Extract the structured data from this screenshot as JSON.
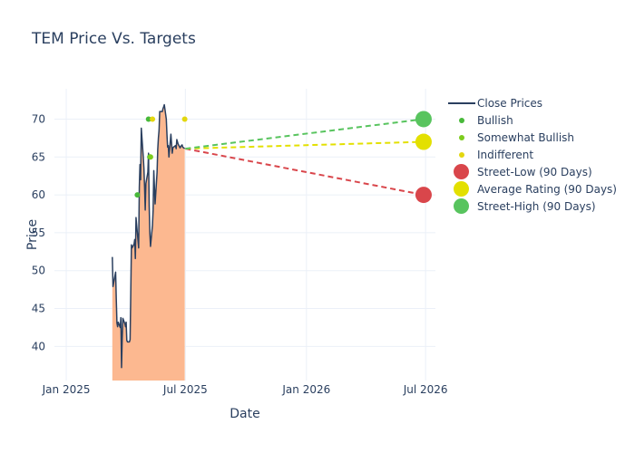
{
  "chart_data": {
    "type": "line",
    "title": "TEM Price Vs. Targets",
    "xlabel": "Date",
    "ylabel": "Price",
    "x_ticks": [
      "2025-01-01",
      "2025-07-01",
      "2026-01-01",
      "2026-07-01"
    ],
    "x_tick_labels": [
      "Jan 2025",
      "Jul 2025",
      "Jan 2026",
      "Jul 2026"
    ],
    "xlim": [
      "2024-12-14",
      "2026-07-16"
    ],
    "y_ticks": [
      40,
      45,
      50,
      55,
      60,
      65,
      70
    ],
    "ylim": [
      35.5,
      74
    ],
    "grid": true,
    "legend_position": "right",
    "close_prices": {
      "name": "Close Prices",
      "color": "#2a3f5f",
      "fill_color": "#fcb890",
      "x": [
        "2025-03-12",
        "2025-03-13",
        "2025-03-14",
        "2025-03-17",
        "2025-03-18",
        "2025-03-19",
        "2025-03-20",
        "2025-03-21",
        "2025-03-24",
        "2025-03-25",
        "2025-03-26",
        "2025-03-27",
        "2025-03-28",
        "2025-03-31",
        "2025-04-01",
        "2025-04-02",
        "2025-04-03",
        "2025-04-04",
        "2025-04-07",
        "2025-04-08",
        "2025-04-09",
        "2025-04-10",
        "2025-04-11",
        "2025-04-14",
        "2025-04-15",
        "2025-04-16",
        "2025-04-17",
        "2025-04-21",
        "2025-04-22",
        "2025-04-23",
        "2025-04-24",
        "2025-04-25",
        "2025-04-28",
        "2025-04-29",
        "2025-04-30",
        "2025-05-01",
        "2025-05-02",
        "2025-05-05",
        "2025-05-06",
        "2025-05-07",
        "2025-05-08",
        "2025-05-09",
        "2025-05-12",
        "2025-05-13",
        "2025-05-14",
        "2025-05-15",
        "2025-05-16",
        "2025-05-19",
        "2025-05-20",
        "2025-05-21",
        "2025-05-22",
        "2025-05-23",
        "2025-05-27",
        "2025-05-28",
        "2025-05-29",
        "2025-05-30",
        "2025-06-02",
        "2025-06-03",
        "2025-06-04",
        "2025-06-05",
        "2025-06-06",
        "2025-06-09",
        "2025-06-10",
        "2025-06-11",
        "2025-06-12",
        "2025-06-13",
        "2025-06-16",
        "2025-06-17",
        "2025-06-18",
        "2025-06-20",
        "2025-06-23",
        "2025-06-24",
        "2025-06-25",
        "2025-06-26",
        "2025-06-27",
        "2025-06-30"
      ],
      "y": [
        51.8,
        47.9,
        48.4,
        49.8,
        46.2,
        43.1,
        42.6,
        43.2,
        42.5,
        43.8,
        37.2,
        41.0,
        43.7,
        43.0,
        42.6,
        43.2,
        40.8,
        40.6,
        40.6,
        40.9,
        46.9,
        53.4,
        53.0,
        53.5,
        54.1,
        51.6,
        57.0,
        53.0,
        61.0,
        64.0,
        62.0,
        68.8,
        65.0,
        63.5,
        61.0,
        58.0,
        61.5,
        63.0,
        65.5,
        58.5,
        55.0,
        53.2,
        56.0,
        58.0,
        63.2,
        61.0,
        58.8,
        63.0,
        66.0,
        67.5,
        68.5,
        71.0,
        71.0,
        71.4,
        71.6,
        71.9,
        70.0,
        68.0,
        66.3,
        66.5,
        65.0,
        68.0,
        66.8,
        65.5,
        66.2,
        66.3,
        66.5,
        66.1,
        67.3,
        66.7,
        66.2,
        66.4,
        66.5,
        66.6,
        66.3,
        66.1
      ]
    },
    "ratings": [
      {
        "name": "Bullish",
        "color": "#48b93a",
        "points": [
          {
            "x": "2025-04-19",
            "y": 60
          },
          {
            "x": "2025-05-06",
            "y": 70
          },
          {
            "x": "2025-05-08",
            "y": 65
          }
        ]
      },
      {
        "name": "Somewhat Bullish",
        "color": "#7ccc1d",
        "points": [
          {
            "x": "2025-05-09",
            "y": 65
          }
        ]
      },
      {
        "name": "Indifferent",
        "color": "#e3d70f",
        "points": [
          {
            "x": "2025-05-12",
            "y": 70
          },
          {
            "x": "2025-06-30",
            "y": 70
          }
        ]
      }
    ],
    "targets": [
      {
        "name": "Street-Low (90 Days)",
        "color": "#d9464b",
        "from": {
          "x": "2025-07-01",
          "y": 66.1
        },
        "to": {
          "x": "2026-06-28",
          "y": 60
        }
      },
      {
        "name": "Average Rating (90 Days)",
        "color": "#e3e000",
        "from": {
          "x": "2025-07-01",
          "y": 66.1
        },
        "to": {
          "x": "2026-06-28",
          "y": 67
        }
      },
      {
        "name": "Street-High (90 Days)",
        "color": "#58c45e",
        "from": {
          "x": "2025-07-01",
          "y": 66.1
        },
        "to": {
          "x": "2026-06-28",
          "y": 70
        }
      }
    ]
  }
}
